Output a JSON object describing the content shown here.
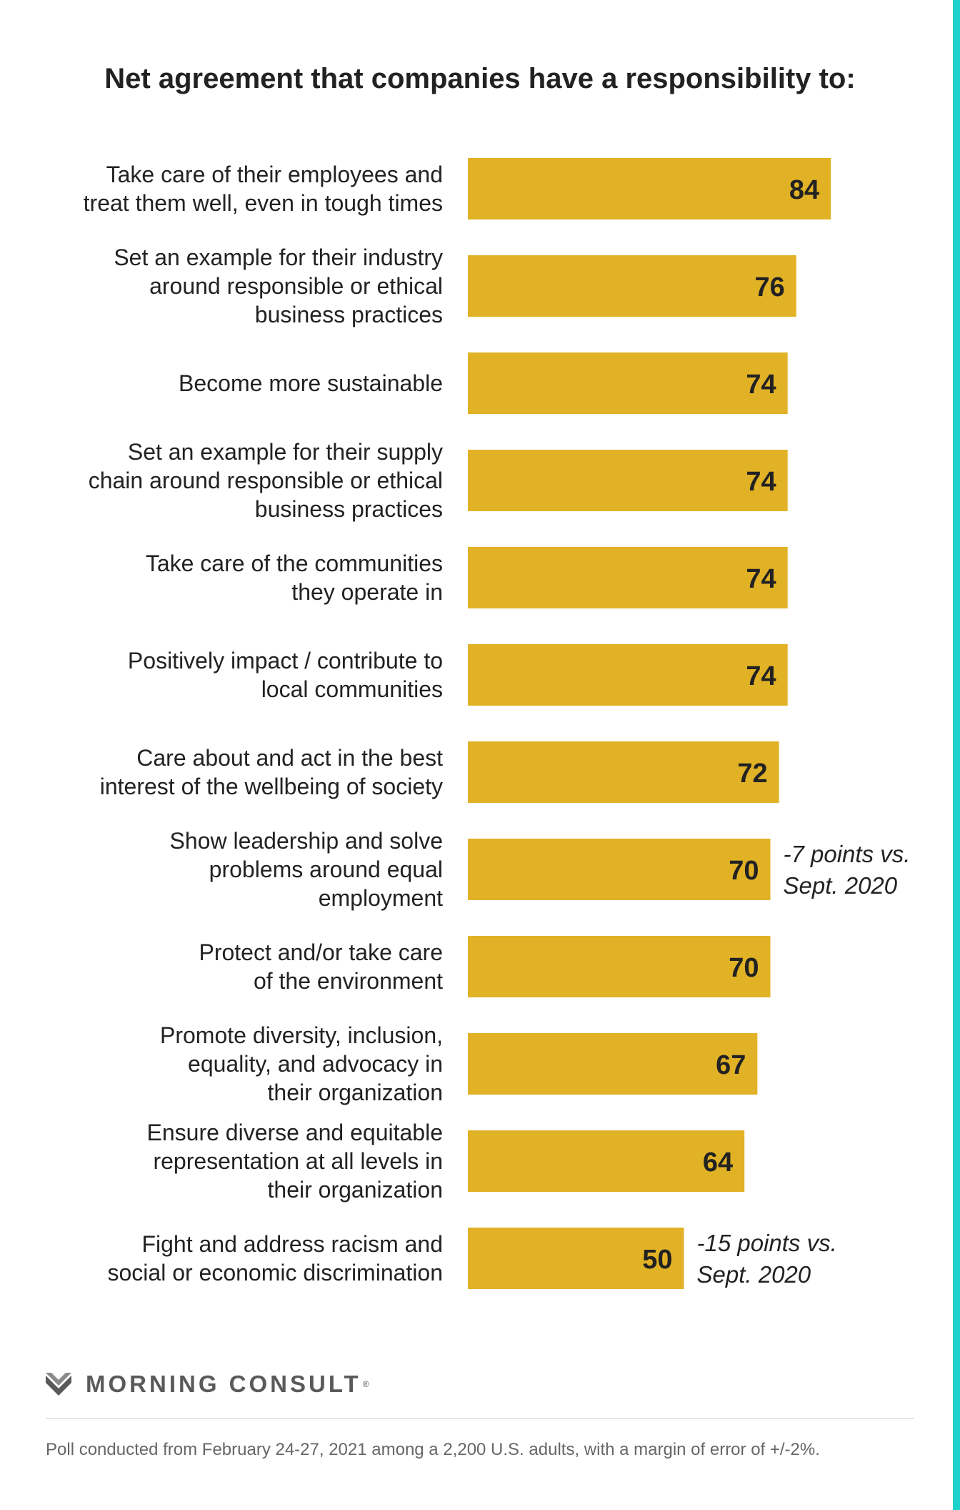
{
  "title": "Net agreement that companies have a responsibility to:",
  "colors": {
    "bar": "#E2B226",
    "accent_stripe": "#1ED2CB",
    "text": "#222222",
    "brand": "#5A5A5A"
  },
  "chart_data": {
    "type": "bar",
    "orientation": "horizontal",
    "title": "Net agreement that companies have a responsibility to:",
    "xlim": [
      0,
      100
    ],
    "grid": false,
    "categories": [
      [
        "Take care of their employees and",
        "treat them well, even in tough times"
      ],
      [
        "Set an example for their industry",
        "around responsible or ethical",
        "business practices"
      ],
      [
        "Become more sustainable"
      ],
      [
        "Set an example for their supply",
        "chain around responsible or ethical",
        "business practices"
      ],
      [
        "Take care of the communities",
        "they operate in"
      ],
      [
        "Positively impact / contribute to",
        "local communities"
      ],
      [
        "Care about and act in the best",
        "interest of the wellbeing of society"
      ],
      [
        "Show leadership and solve",
        "problems around equal",
        "employment"
      ],
      [
        "Protect and/or take care",
        "of the environment"
      ],
      [
        "Promote diversity, inclusion,",
        "equality, and advocacy in",
        "their organization"
      ],
      [
        "Ensure diverse and equitable",
        "representation at all levels in",
        "their organization"
      ],
      [
        "Fight and address racism and",
        "social or economic discrimination"
      ]
    ],
    "values": [
      84,
      76,
      74,
      74,
      74,
      74,
      72,
      70,
      70,
      67,
      64,
      50
    ],
    "annotations": [
      {
        "index": 7,
        "lines": [
          "-7 points vs.",
          "Sept. 2020"
        ]
      },
      {
        "index": 11,
        "lines": [
          "-15 points vs.",
          "Sept. 2020"
        ]
      }
    ]
  },
  "brand": {
    "name": "MORNING CONSULT",
    "mark": "®",
    "logo_icon": "chevron-m-logo"
  },
  "footnote": "Poll conducted from February 24-27, 2021 among a 2,200 U.S. adults, with a margin of error of +/-2%."
}
